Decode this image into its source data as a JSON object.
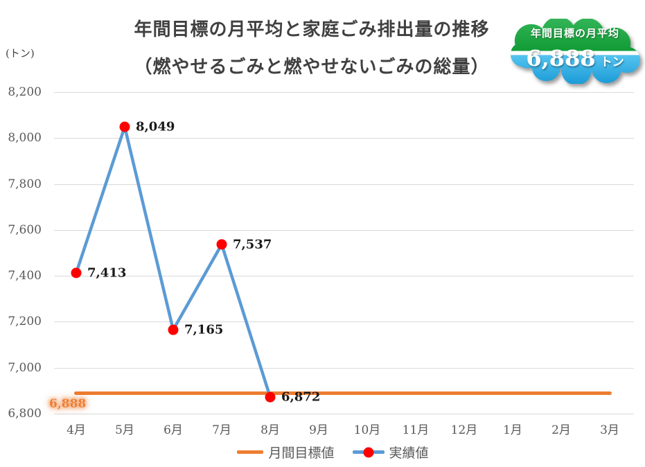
{
  "title": {
    "line1": "年間目標の月平均と家庭ごみ排出量の推移",
    "line2": "（燃やせるごみと燃やせないごみの総量）"
  },
  "y_axis_unit": "(トン)",
  "badge": {
    "label": "年間目標の月平均",
    "value": "6,888",
    "unit": "トン",
    "green_top": "#33B457",
    "green_bottom": "#0F9A34",
    "blue_top": "#55C4EF",
    "blue_bottom": "#1B9BD7"
  },
  "legend": {
    "target_label": "月間目標値",
    "actual_label": "実績値"
  },
  "colors": {
    "target_line": "#ED7D31",
    "actual_line": "#5B9BD5",
    "marker": "#FF0000",
    "gridline": "#D9D9D9",
    "tick_text": "#595959",
    "title_text": "#404040"
  },
  "chart_data": {
    "type": "line",
    "categories": [
      "4月",
      "5月",
      "6月",
      "7月",
      "8月",
      "9月",
      "10月",
      "11月",
      "12月",
      "1月",
      "2月",
      "3月"
    ],
    "series": [
      {
        "name": "月間目標値",
        "role": "target",
        "color": "#ED7D31",
        "value": 6888,
        "value_label": "6,888"
      },
      {
        "name": "実績値",
        "role": "actual",
        "color": "#5B9BD5",
        "marker_color": "#FF0000",
        "values": [
          7413,
          8049,
          7165,
          7537,
          6872,
          null,
          null,
          null,
          null,
          null,
          null,
          null
        ],
        "value_labels": [
          "7,413",
          "8,049",
          "7,165",
          "7,537",
          "6,872",
          null,
          null,
          null,
          null,
          null,
          null,
          null
        ]
      }
    ],
    "ylim": [
      6800,
      8200
    ],
    "yticks": [
      6800,
      7000,
      7200,
      7400,
      7600,
      7800,
      8000,
      8200
    ],
    "ytick_labels": [
      "6,800",
      "7,000",
      "7,200",
      "7,400",
      "7,600",
      "7,800",
      "8,000",
      "8,200"
    ],
    "grid": true,
    "legend_position": "bottom"
  }
}
